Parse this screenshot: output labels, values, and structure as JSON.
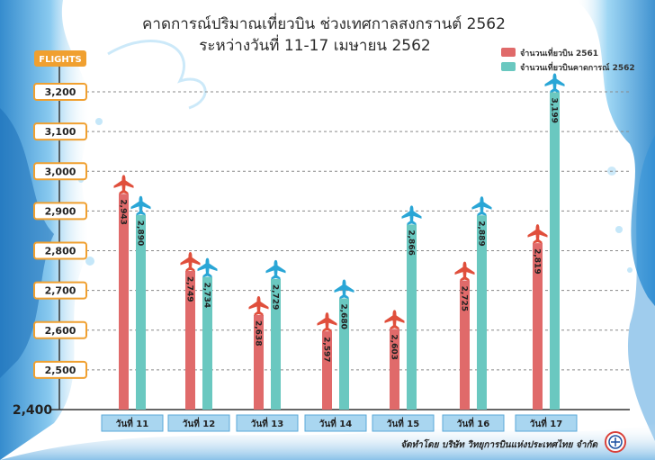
{
  "title_line1": "คาดการณ์ปริมาณเที่ยวบิน ช่วงเทศกาลสงกรานต์ 2562",
  "title_line2": "ระหว่างวันที่ 11-17 เมษายน 2562",
  "credit": "จัดทำโดย บริษัท วิทยุการบินแห่งประเทศไทย จำกัด",
  "colors": {
    "series_2561": "#e06a6a",
    "series_2562": "#6ac8c0",
    "plane_2561": "#e04f3c",
    "plane_2562": "#2aa6d6",
    "axis_box_border": "#f0a030",
    "axis_header_bg": "#f0a030",
    "day_box_bg": "#a9d6f0",
    "day_box_border": "#5aa8d8"
  },
  "chart_data": {
    "type": "bar",
    "title": "คาดการณ์ปริมาณเที่ยวบิน ช่วงเทศกาลสงกรานต์ 2562",
    "subtitle": "ระหว่างวันที่ 11-17 เมษายน 2562",
    "ylabel": "FLIGHTS",
    "xlabel": "",
    "ylim": [
      2400,
      3200
    ],
    "yticks": [
      "3,200",
      "3,100",
      "3,000",
      "2,900",
      "2,800",
      "2,700",
      "2,600",
      "2,500"
    ],
    "y_origin_label": "2,400",
    "grid": true,
    "legend_position": "top-right",
    "categories": [
      "วันที่ 11",
      "วันที่ 12",
      "วันที่ 13",
      "วันที่ 14",
      "วันที่ 15",
      "วันที่ 16",
      "วันที่ 17"
    ],
    "series": [
      {
        "name": "จำนวนเที่ยวบิน 2561",
        "values": [
          2943,
          2749,
          2638,
          2597,
          2603,
          2725,
          2819
        ],
        "labels": [
          "2,943",
          "2,749",
          "2,638",
          "2,597",
          "2,603",
          "2,725",
          "2,819"
        ]
      },
      {
        "name": "จำนวนเที่ยวบินคาดการณ์ 2562",
        "values": [
          2890,
          2734,
          2729,
          2680,
          2866,
          2889,
          3199
        ],
        "labels": [
          "2,890",
          "2,734",
          "2,729",
          "2,680",
          "2,866",
          "2,889",
          "3,199"
        ]
      }
    ]
  }
}
